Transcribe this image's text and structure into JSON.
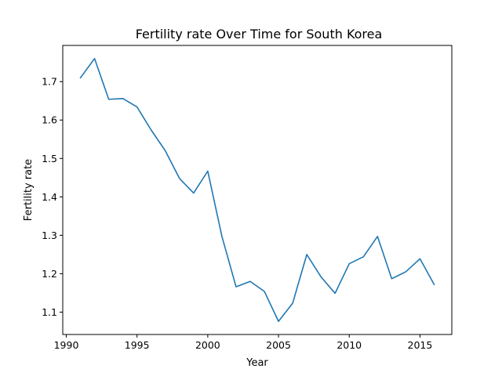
{
  "chart_data": {
    "type": "line",
    "title": "Fertility rate Over Time for South Korea",
    "xlabel": "Year",
    "ylabel": "Fertility rate",
    "xlim": [
      1989.75,
      2017.25
    ],
    "ylim": [
      1.0418,
      1.7942
    ],
    "xticks": [
      1990,
      1995,
      2000,
      2005,
      2010,
      2015
    ],
    "yticks": [
      1.1,
      1.2,
      1.3,
      1.4,
      1.5,
      1.6,
      1.7
    ],
    "grid": false,
    "series": [
      {
        "color": "#1f77b4",
        "x": [
          1991,
          1992,
          1993,
          1994,
          1995,
          1996,
          1997,
          1998,
          1999,
          2000,
          2001,
          2002,
          2003,
          2004,
          2005,
          2006,
          2007,
          2008,
          2009,
          2010,
          2011,
          2012,
          2013,
          2014,
          2015,
          2016
        ],
        "y": [
          1.71,
          1.76,
          1.654,
          1.656,
          1.634,
          1.574,
          1.52,
          1.448,
          1.41,
          1.467,
          1.297,
          1.166,
          1.18,
          1.154,
          1.076,
          1.123,
          1.25,
          1.192,
          1.149,
          1.226,
          1.244,
          1.297,
          1.187,
          1.205,
          1.239,
          1.172
        ]
      }
    ]
  }
}
